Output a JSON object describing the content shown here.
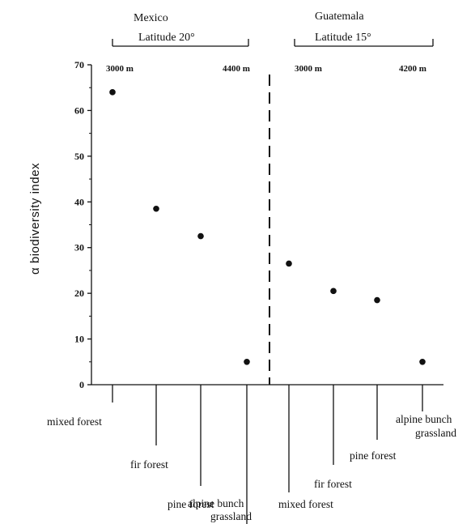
{
  "chart_data": {
    "type": "scatter",
    "ylabel": "α  biodiversity index",
    "ylim": [
      0,
      70
    ],
    "yticks": [
      0,
      10,
      20,
      30,
      40,
      50,
      60,
      70
    ],
    "grid": false,
    "groups": [
      {
        "region": "Mexico",
        "latitude": "Latitude 20°",
        "elev_start": "3000 m",
        "elev_end": "4400 m",
        "categories": [
          "mixed forest",
          "fir forest",
          "pine forest",
          "alpine bunch grassland"
        ],
        "values": [
          64,
          38.5,
          32.5,
          5
        ]
      },
      {
        "region": "Guatemala",
        "latitude": "Latitude 15°",
        "elev_start": "3000 m",
        "elev_end": "4200 m",
        "categories": [
          "mixed forest",
          "fir forest",
          "pine forest",
          "alpine bunch grassland"
        ],
        "values": [
          26.5,
          20.5,
          18.5,
          5
        ]
      }
    ]
  }
}
